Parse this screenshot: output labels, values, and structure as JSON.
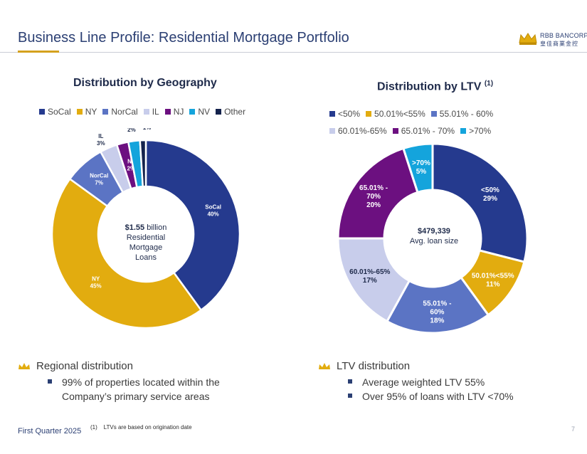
{
  "page": {
    "title": "Business Line Profile: Residential Mortgage Portfolio",
    "logo": {
      "name": "RBB BANCORP",
      "name_cjk": "皇佳商業金控"
    },
    "footer": "First Quarter 2025",
    "footnote_marker": "(1)",
    "footnote_text": "LTVs are based on origination date",
    "page_number": "7"
  },
  "colors": {
    "socal": "#253a8e",
    "ny": "#e2ac0f",
    "norcal": "#5b74c4",
    "il": "#c8cdeb",
    "nj": "#6c1080",
    "nv": "#14a4dc",
    "other": "#14224c"
  },
  "geo": {
    "title": "Distribution by Geography",
    "center": {
      "value": "$1.55",
      "unit": "billion",
      "line2": "Residential",
      "line3": "Mortgage",
      "line4": "Loans"
    },
    "legend": [
      {
        "label": "SoCal",
        "color": "#253a8e"
      },
      {
        "label": "NY",
        "color": "#e2ac0f"
      },
      {
        "label": "NorCal",
        "color": "#5b74c4"
      },
      {
        "label": "IL",
        "color": "#c8cdeb"
      },
      {
        "label": "NJ",
        "color": "#6c1080"
      },
      {
        "label": "NV",
        "color": "#14a4dc"
      },
      {
        "label": "Other",
        "color": "#14224c"
      }
    ]
  },
  "ltv": {
    "title": "Distribution by LTV",
    "title_sup": "(1)",
    "center": {
      "value": "$479,339",
      "label": "Avg. loan size"
    },
    "legend": [
      {
        "label": "<50%",
        "color": "#253a8e"
      },
      {
        "label": "50.01%<55%",
        "color": "#e2ac0f"
      },
      {
        "label": "55.01% - 60%",
        "color": "#5b74c4"
      },
      {
        "label": "60.01%-65%",
        "color": "#c8cdeb"
      },
      {
        "label": "65.01% - 70%",
        "color": "#6c1080"
      },
      {
        "label": ">70%",
        "color": "#14a4dc"
      }
    ]
  },
  "chart_data": [
    {
      "type": "pie",
      "title": "Distribution by Geography",
      "categories": [
        "SoCal",
        "NY",
        "NorCal",
        "IL",
        "NJ",
        "NV",
        "Other"
      ],
      "values": [
        40,
        45,
        7,
        3,
        2,
        2,
        1
      ],
      "labels": [
        "40%",
        "45%",
        "7%",
        "3%",
        "2%",
        "2%",
        "1%"
      ],
      "legend": "top"
    },
    {
      "type": "pie",
      "title": "Distribution by LTV (1)",
      "categories": [
        "<50%",
        "50.01%<55%",
        "55.01% - 60%",
        "60.01%-65%",
        "65.01% - 70%",
        ">70%"
      ],
      "values": [
        29,
        11,
        18,
        17,
        20,
        5
      ],
      "labels": [
        "29%",
        "11%",
        "18%",
        "17%",
        "20%",
        "5%"
      ],
      "legend": "top"
    }
  ],
  "bullets": {
    "left": {
      "heading": "Regional distribution",
      "items": [
        "99% of properties located within the",
        "Company’s primary service areas"
      ]
    },
    "right": {
      "heading": "LTV distribution",
      "items": [
        "Average weighted LTV 55%",
        "Over 95% of loans with LTV <70%"
      ]
    }
  }
}
